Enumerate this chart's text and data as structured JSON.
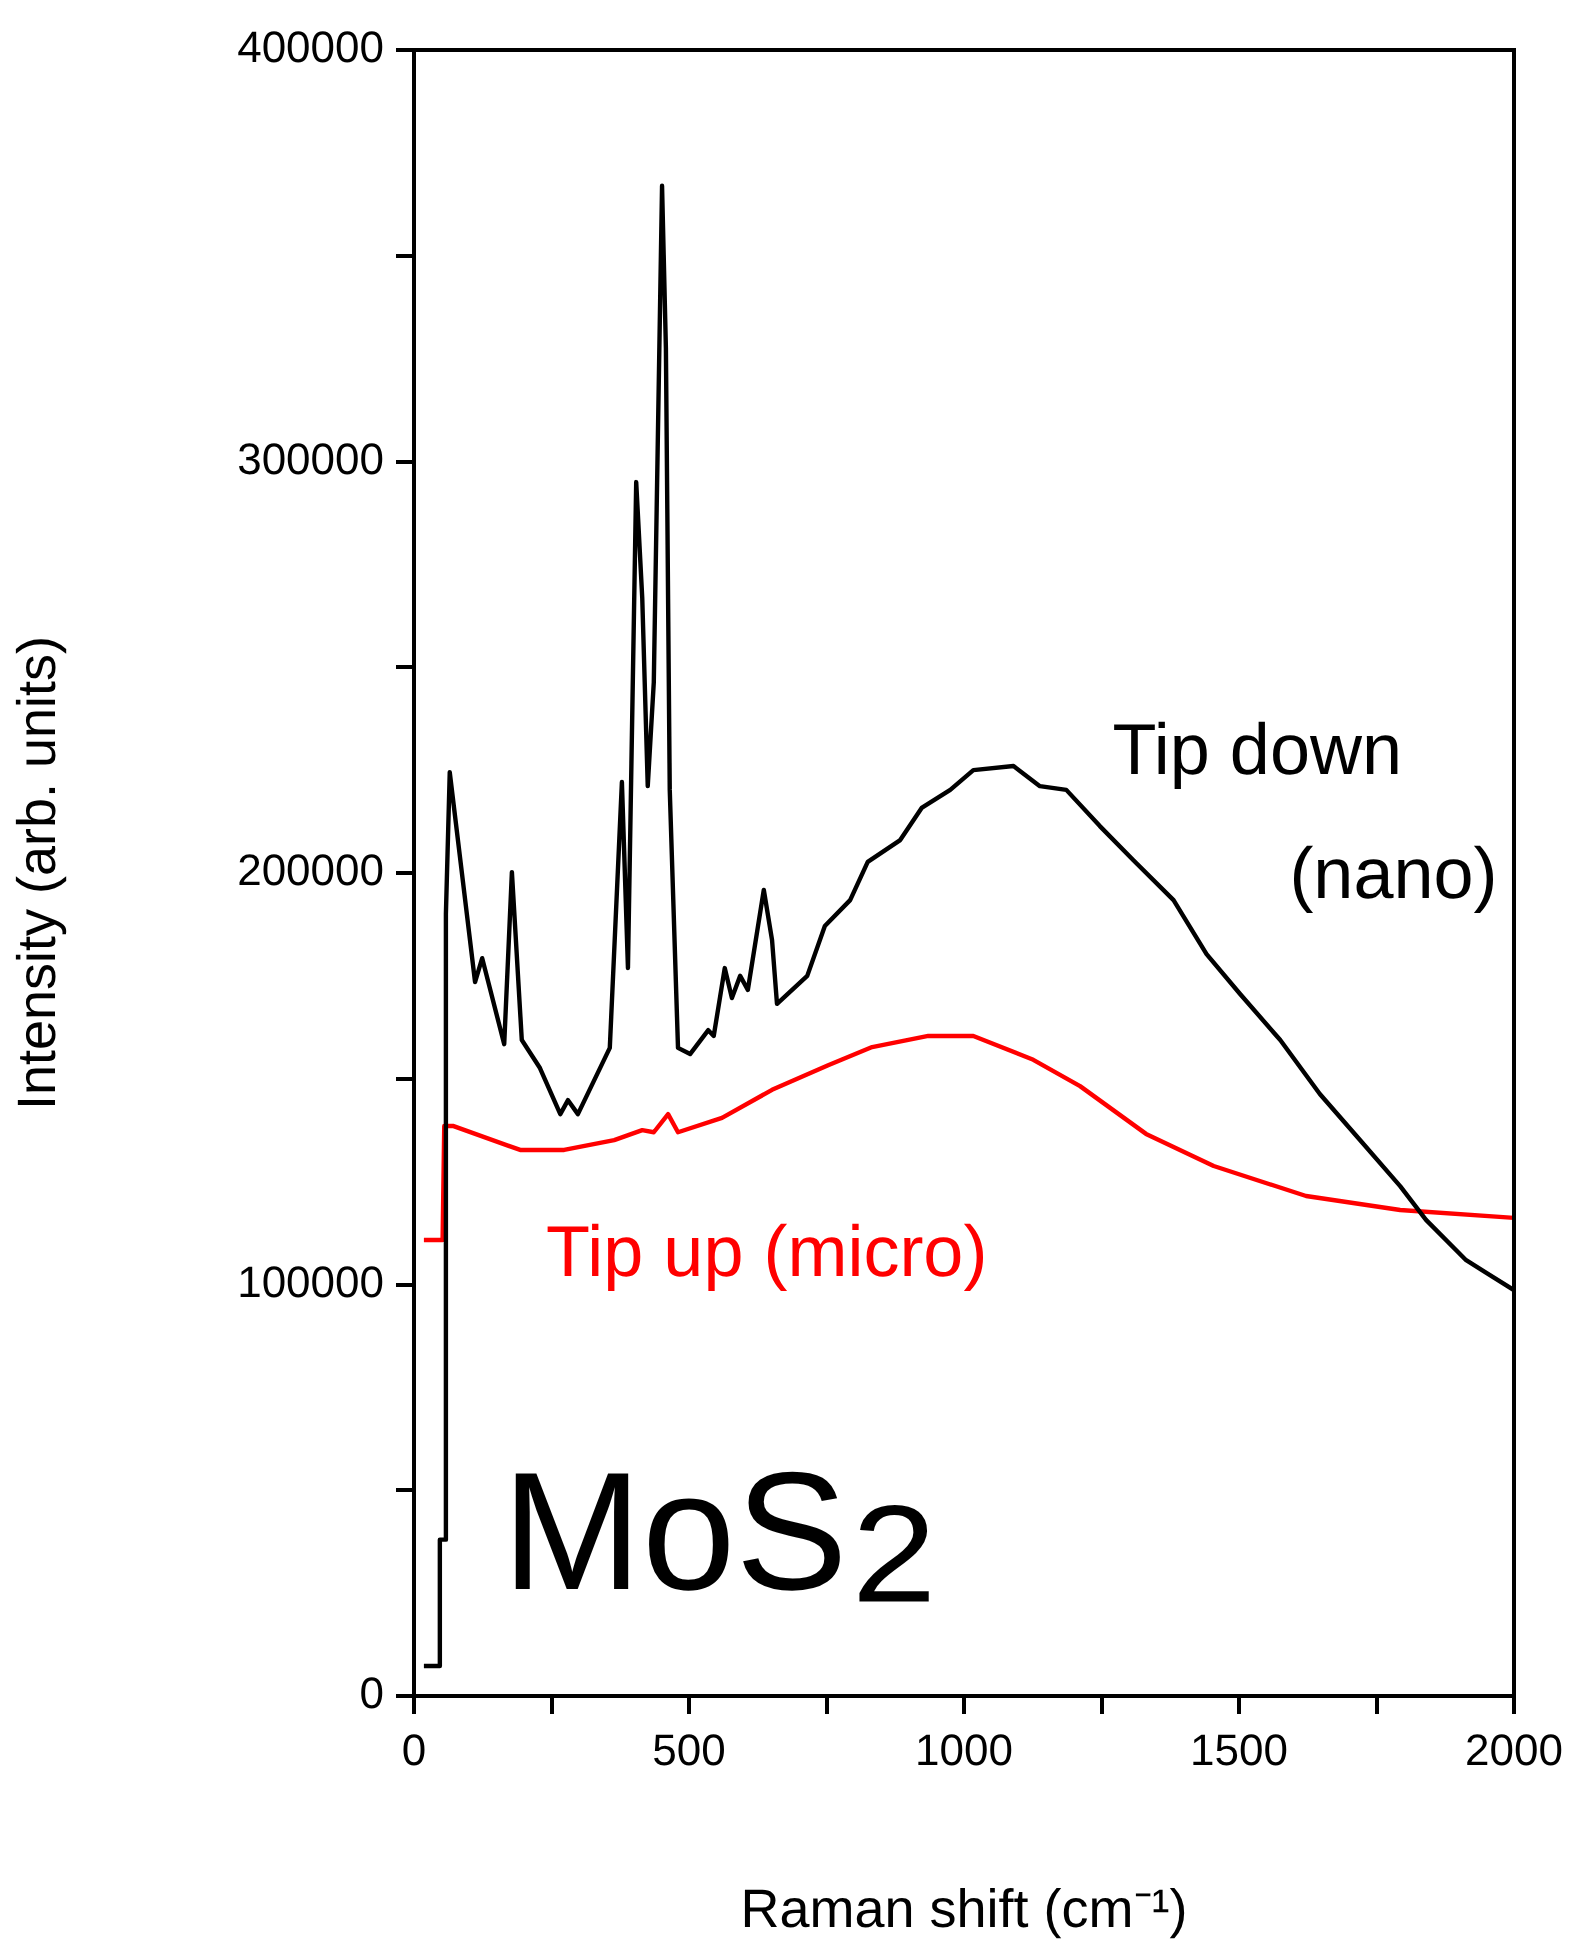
{
  "chart_data": {
    "type": "line",
    "xlabel": "Raman shift (cm⁻¹)",
    "ylabel": "Intensity (arb. units)",
    "xlim": [
      0,
      2000
    ],
    "xticks": [
      0,
      {
        "value": 250,
        "label": null
      },
      500,
      {
        "value": 750,
        "label": null
      },
      1000,
      {
        "value": 1250,
        "label": null
      },
      1500,
      {
        "value": 1750,
        "label": null
      },
      2000
    ],
    "ylim": [
      0,
      400000
    ],
    "yticks": [
      0,
      {
        "value": 50000,
        "label": null
      },
      100000,
      {
        "value": 150000,
        "label": null
      },
      200000,
      {
        "value": 250000,
        "label": null
      },
      300000,
      {
        "value": 350000,
        "label": null
      },
      400000
    ],
    "grid": false,
    "legend": false,
    "marker": "none",
    "line_style": "solid",
    "annotations": [
      "MoS₂"
    ],
    "series": [
      {
        "name": "Tip down (nano)",
        "color": "#000000",
        "x": [
          18,
          45,
          47,
          55,
          58,
          65,
          111,
          124,
          164,
          178,
          196,
          229,
          266,
          280,
          298,
          356,
          378,
          389,
          404,
          415,
          425,
          436,
          451,
          458,
          465,
          480,
          502,
          535,
          545,
          565,
          578,
          593,
          607,
          636,
          651,
          660,
          715,
          747,
          793,
          825,
          884,
          923,
          975,
          1017,
          1090,
          1138,
          1186,
          1247,
          1308,
          1381,
          1441,
          1502,
          1575,
          1647,
          1720,
          1793,
          1840,
          1913,
          1999
        ],
        "values": [
          7300,
          7300,
          38000,
          38000,
          190000,
          224500,
          173500,
          179300,
          158400,
          200200,
          159400,
          152600,
          141400,
          144800,
          141400,
          157500,
          222100,
          176900,
          295000,
          266800,
          221100,
          246400,
          367000,
          327600,
          220200,
          157500,
          156000,
          161800,
          160400,
          176900,
          169600,
          175000,
          171600,
          195900,
          183700,
          168200,
          175000,
          187100,
          193400,
          202700,
          208000,
          215800,
          220200,
          225000,
          226000,
          221100,
          220200,
          211400,
          203100,
          193400,
          180300,
          170600,
          159400,
          146300,
          135100,
          123900,
          115700,
          105900,
          98700
        ]
      },
      {
        "name": "Tip up (micro)",
        "color": "#ff0000",
        "x": [
          18,
          52,
          55,
          72,
          193,
          273,
          364,
          415,
          436,
          462,
          480,
          560,
          651,
          753,
          833,
          935,
          1017,
          1126,
          1211,
          1331,
          1454,
          1622,
          1793,
          2000
        ],
        "values": [
          110800,
          110800,
          138500,
          138500,
          132700,
          132700,
          135100,
          137500,
          137000,
          141400,
          137000,
          140500,
          147300,
          153300,
          157700,
          160400,
          160400,
          154600,
          148200,
          136600,
          128800,
          121500,
          118100,
          116200
        ]
      }
    ]
  }
}
